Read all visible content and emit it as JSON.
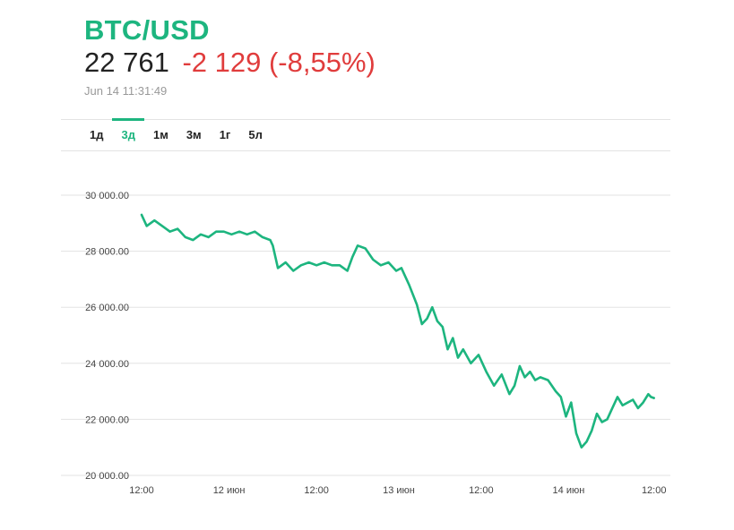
{
  "header": {
    "symbol": "BTC/USD",
    "price": "22 761",
    "change": "-2 129 (-8,55%)",
    "timestamp": "Jun 14 11:31:49"
  },
  "colors": {
    "accent": "#1db57f",
    "negative": "#e03c3c",
    "grid": "#e3e3e3",
    "text": "#222222"
  },
  "tabs": [
    {
      "label": "1д",
      "active": false
    },
    {
      "label": "3д",
      "active": true
    },
    {
      "label": "1м",
      "active": false
    },
    {
      "label": "3м",
      "active": false
    },
    {
      "label": "1г",
      "active": false
    },
    {
      "label": "5л",
      "active": false
    }
  ],
  "chart_data": {
    "type": "line",
    "ylim": [
      20000,
      30000
    ],
    "xlim": [
      0,
      1
    ],
    "grid": true,
    "yticks": [
      20000,
      22000,
      24000,
      26000,
      28000,
      30000
    ],
    "ytick_labels": [
      "20 000.00",
      "22 000.00",
      "24 000.00",
      "26 000.00",
      "28 000.00",
      "30 000.00"
    ],
    "xtick_positions": [
      0.0,
      0.17,
      0.34,
      0.5,
      0.66,
      0.83,
      0.996
    ],
    "xtick_labels": [
      "12:00",
      "12 июн",
      "12:00",
      "13 июн",
      "12:00",
      "14 июн",
      "12:00"
    ],
    "series": [
      {
        "x": [
          0.0,
          0.01,
          0.025,
          0.04,
          0.055,
          0.07,
          0.085,
          0.1,
          0.115,
          0.13,
          0.145,
          0.16,
          0.175,
          0.19,
          0.205,
          0.22,
          0.235,
          0.25,
          0.255,
          0.265,
          0.28,
          0.295,
          0.31,
          0.325,
          0.34,
          0.355,
          0.37,
          0.385,
          0.4,
          0.41,
          0.42,
          0.435,
          0.45,
          0.465,
          0.48,
          0.495,
          0.505,
          0.52,
          0.535,
          0.545,
          0.555,
          0.565,
          0.575,
          0.585,
          0.595,
          0.605,
          0.615,
          0.625,
          0.64,
          0.655,
          0.67,
          0.685,
          0.7,
          0.715,
          0.725,
          0.735,
          0.745,
          0.755,
          0.765,
          0.775,
          0.79,
          0.805,
          0.815,
          0.825,
          0.835,
          0.845,
          0.855,
          0.865,
          0.875,
          0.885,
          0.895,
          0.905,
          0.915,
          0.925,
          0.935,
          0.945,
          0.955,
          0.965,
          0.975,
          0.985,
          0.99,
          0.996
        ],
        "y": [
          29300,
          28900,
          29100,
          28900,
          28700,
          28800,
          28500,
          28400,
          28600,
          28500,
          28700,
          28700,
          28600,
          28700,
          28600,
          28700,
          28500,
          28400,
          28200,
          27400,
          27600,
          27300,
          27500,
          27600,
          27500,
          27600,
          27500,
          27500,
          27300,
          27800,
          28200,
          28100,
          27700,
          27500,
          27600,
          27300,
          27400,
          26800,
          26100,
          25400,
          25600,
          26000,
          25500,
          25300,
          24500,
          24900,
          24200,
          24500,
          24000,
          24300,
          23700,
          23200,
          23600,
          22900,
          23200,
          23900,
          23500,
          23700,
          23400,
          23500,
          23400,
          23000,
          22800,
          22100,
          22600,
          21500,
          21000,
          21200,
          21600,
          22200,
          21900,
          22000,
          22400,
          22800,
          22500,
          22600,
          22700,
          22400,
          22600,
          22900,
          22800,
          22761
        ]
      }
    ]
  }
}
